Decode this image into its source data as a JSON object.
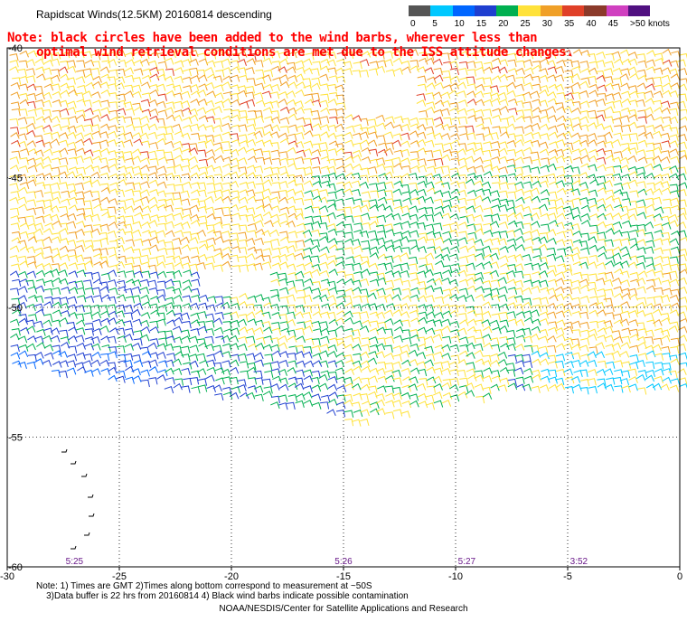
{
  "header": {
    "title": "Rapidscat Winds(12.5KM) 20160814 descending"
  },
  "note": {
    "line1": "Note: black circles have been added to the wind barbs, wherever less than",
    "line2": "    optimal wind retrieval conditions are met due to the ISS attitude changes.",
    "color": "#ff0000"
  },
  "color_scale": {
    "unit_label": "knots",
    "labels": [
      "0",
      "5",
      "10",
      "15",
      "20",
      "25",
      "30",
      "35",
      "40",
      "45",
      ">50"
    ],
    "colors": [
      "#555555",
      "#00c8ff",
      "#0066ff",
      "#1f3fd0",
      "#00b050",
      "#ffe23a",
      "#f0a028",
      "#e04028",
      "#8b3a2a",
      "#d040c0",
      "#501080"
    ]
  },
  "map": {
    "x_axis_ticks": [
      "-30",
      "-25",
      "-20",
      "-15",
      "-10",
      "-5",
      "0"
    ],
    "y_axis_ticks": [
      "-40",
      "-45",
      "-50",
      "-55",
      "-60"
    ],
    "x_range": [
      -30,
      0
    ],
    "y_range": [
      -60,
      -40
    ],
    "grid": "dotted",
    "pass_times": [
      {
        "lon": -27.0,
        "label": "5:25"
      },
      {
        "lon": -15.0,
        "label": "5:26"
      },
      {
        "lon": -9.5,
        "label": "5:27"
      },
      {
        "lon": -4.5,
        "label": "3:52"
      }
    ]
  },
  "footer": {
    "line1": "Note: 1) Times are GMT 2)Times along bottom correspond to measurement at ~50S",
    "line2": "    3)Data buffer is 22 hrs from 20160814 4) Black wind barbs indicate possible contamination",
    "credit": "NOAA/NESDIS/Center for Satellite Applications and Research"
  }
}
